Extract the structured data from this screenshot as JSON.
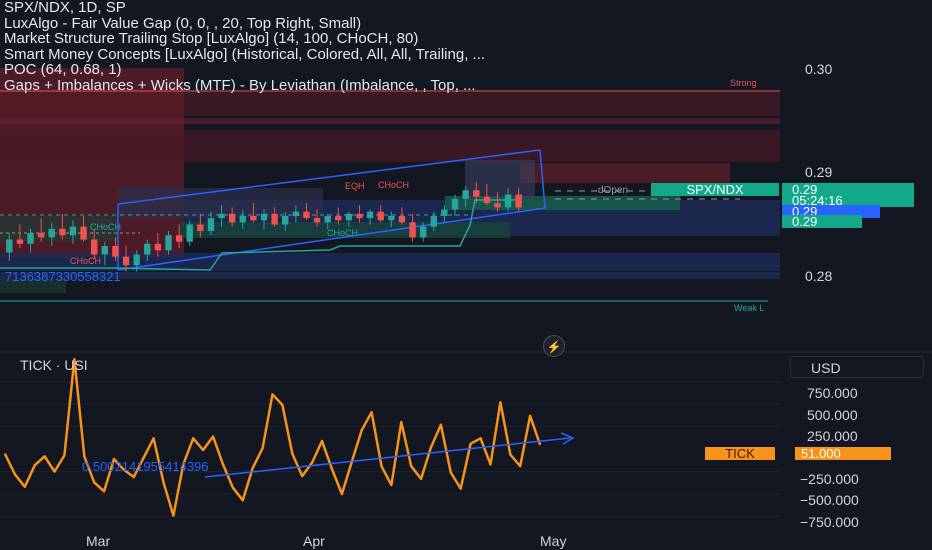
{
  "legend": {
    "title": "SPX/NDX, 1D, SP",
    "lines": [
      "LuxAlgo - Fair Value Gap (0, 0, , 20, Top Right, Small)",
      "Market Structure Trailing Stop [LuxAlgo] (14, 100, CHoCH, 80)",
      "Smart Money Concepts [LuxAlgo] (Historical, Colored, All, All, Trailing, ...",
      "POC (64, 0.68, 1)",
      "Gaps + Imbalances + Wicks (MTF) - By Leviathan (Imbalance, , Top, ..."
    ]
  },
  "annotations": {
    "strong": "Strong",
    "weak": "Weak L",
    "eqh": "EQH",
    "choch_top": "CHoCH",
    "choch_mid": "CHoCH",
    "choch_low": "CHoCH",
    "choch_bottom": "CHoCH",
    "dopen": "dOpen",
    "poc_number": "7136387330558321",
    "slope_number": "0.5002141955414396"
  },
  "price_axis": {
    "ticks": [
      "0.30",
      "0.29",
      "0.28"
    ],
    "badges": [
      {
        "text": "0.29",
        "color": "#13a88a"
      },
      {
        "text": "05:24:16",
        "color": "#13a88a"
      },
      {
        "text": "0.29",
        "color": "#2962ff"
      },
      {
        "text": "0.29",
        "color": "#13a88a"
      }
    ],
    "pair_label": "SPX/NDX"
  },
  "sub_panel": {
    "title": "TICK · USI",
    "currency": "USD",
    "badge_label": "TICK",
    "badge_value": "51.000",
    "ticks": [
      "750.000",
      "500.000",
      "250.000",
      "−250.000",
      "−500.000",
      "−750.000"
    ]
  },
  "time_axis": {
    "ticks": [
      "Mar",
      "Apr",
      "May"
    ]
  },
  "colors": {
    "background": "#131722",
    "bull": "#26a69a",
    "bear": "#ef5350",
    "channel": "#2962ff",
    "tick_line": "#f7931a"
  },
  "chart_data": [
    {
      "type": "candlestick",
      "title": "SPX/NDX, 1D, SP",
      "ylim": [
        0.2745,
        0.3012
      ],
      "yticks": [
        0.3,
        0.29,
        0.28
      ],
      "xticks": [
        "Mar",
        "Apr",
        "May"
      ],
      "candles": [
        {
          "o": 0.2838,
          "h": 0.2856,
          "l": 0.283,
          "c": 0.285
        },
        {
          "o": 0.285,
          "h": 0.2864,
          "l": 0.2842,
          "c": 0.2846
        },
        {
          "o": 0.2846,
          "h": 0.286,
          "l": 0.2838,
          "c": 0.2856
        },
        {
          "o": 0.2856,
          "h": 0.287,
          "l": 0.2848,
          "c": 0.2852
        },
        {
          "o": 0.2852,
          "h": 0.2866,
          "l": 0.2844,
          "c": 0.286
        },
        {
          "o": 0.286,
          "h": 0.2874,
          "l": 0.285,
          "c": 0.2854
        },
        {
          "o": 0.2854,
          "h": 0.2868,
          "l": 0.2846,
          "c": 0.2862
        },
        {
          "o": 0.2862,
          "h": 0.2872,
          "l": 0.2848,
          "c": 0.285
        },
        {
          "o": 0.285,
          "h": 0.286,
          "l": 0.2832,
          "c": 0.2836
        },
        {
          "o": 0.2836,
          "h": 0.2848,
          "l": 0.2826,
          "c": 0.2844
        },
        {
          "o": 0.2844,
          "h": 0.2852,
          "l": 0.283,
          "c": 0.2834
        },
        {
          "o": 0.2834,
          "h": 0.2844,
          "l": 0.282,
          "c": 0.2826
        },
        {
          "o": 0.2826,
          "h": 0.284,
          "l": 0.282,
          "c": 0.2836
        },
        {
          "o": 0.2836,
          "h": 0.285,
          "l": 0.283,
          "c": 0.2846
        },
        {
          "o": 0.2846,
          "h": 0.2856,
          "l": 0.2834,
          "c": 0.284
        },
        {
          "o": 0.284,
          "h": 0.2858,
          "l": 0.2836,
          "c": 0.2854
        },
        {
          "o": 0.2854,
          "h": 0.2864,
          "l": 0.2842,
          "c": 0.2848
        },
        {
          "o": 0.2848,
          "h": 0.2868,
          "l": 0.2844,
          "c": 0.2864
        },
        {
          "o": 0.2864,
          "h": 0.2874,
          "l": 0.2852,
          "c": 0.2858
        },
        {
          "o": 0.2858,
          "h": 0.2876,
          "l": 0.2854,
          "c": 0.287
        },
        {
          "o": 0.287,
          "h": 0.2882,
          "l": 0.2862,
          "c": 0.2874
        },
        {
          "o": 0.2874,
          "h": 0.288,
          "l": 0.2862,
          "c": 0.2866
        },
        {
          "o": 0.2866,
          "h": 0.2878,
          "l": 0.286,
          "c": 0.2872
        },
        {
          "o": 0.2872,
          "h": 0.2884,
          "l": 0.2866,
          "c": 0.2868
        },
        {
          "o": 0.2868,
          "h": 0.2878,
          "l": 0.286,
          "c": 0.2874
        },
        {
          "o": 0.2874,
          "h": 0.288,
          "l": 0.2862,
          "c": 0.2864
        },
        {
          "o": 0.2864,
          "h": 0.2876,
          "l": 0.2858,
          "c": 0.2872
        },
        {
          "o": 0.2872,
          "h": 0.2882,
          "l": 0.2866,
          "c": 0.2876
        },
        {
          "o": 0.2876,
          "h": 0.2884,
          "l": 0.2868,
          "c": 0.287
        },
        {
          "o": 0.287,
          "h": 0.2878,
          "l": 0.2862,
          "c": 0.2866
        },
        {
          "o": 0.2866,
          "h": 0.2874,
          "l": 0.286,
          "c": 0.2872
        },
        {
          "o": 0.2872,
          "h": 0.288,
          "l": 0.2864,
          "c": 0.2868
        },
        {
          "o": 0.2868,
          "h": 0.2876,
          "l": 0.2862,
          "c": 0.2874
        },
        {
          "o": 0.2874,
          "h": 0.2882,
          "l": 0.2866,
          "c": 0.287
        },
        {
          "o": 0.287,
          "h": 0.2878,
          "l": 0.2864,
          "c": 0.2876
        },
        {
          "o": 0.2876,
          "h": 0.2882,
          "l": 0.2866,
          "c": 0.2868
        },
        {
          "o": 0.2868,
          "h": 0.2876,
          "l": 0.2862,
          "c": 0.2872
        },
        {
          "o": 0.2872,
          "h": 0.288,
          "l": 0.2864,
          "c": 0.2866
        },
        {
          "o": 0.2866,
          "h": 0.2874,
          "l": 0.2848,
          "c": 0.2852
        },
        {
          "o": 0.2852,
          "h": 0.2866,
          "l": 0.2848,
          "c": 0.2862
        },
        {
          "o": 0.2862,
          "h": 0.2876,
          "l": 0.2858,
          "c": 0.2872
        },
        {
          "o": 0.2872,
          "h": 0.2882,
          "l": 0.2866,
          "c": 0.2878
        },
        {
          "o": 0.2878,
          "h": 0.2892,
          "l": 0.2872,
          "c": 0.2888
        },
        {
          "o": 0.2888,
          "h": 0.29,
          "l": 0.288,
          "c": 0.2896
        },
        {
          "o": 0.2896,
          "h": 0.2904,
          "l": 0.2884,
          "c": 0.289
        },
        {
          "o": 0.289,
          "h": 0.2902,
          "l": 0.2882,
          "c": 0.2884
        },
        {
          "o": 0.2884,
          "h": 0.2894,
          "l": 0.2876,
          "c": 0.288
        },
        {
          "o": 0.288,
          "h": 0.2898,
          "l": 0.2876,
          "c": 0.2892
        },
        {
          "o": 0.2892,
          "h": 0.2898,
          "l": 0.2876,
          "c": 0.288
        }
      ]
    },
    {
      "type": "line",
      "title": "TICK · USI",
      "ylim": [
        -900,
        1080
      ],
      "yticks": [
        750,
        500,
        250,
        -250,
        -500,
        -750
      ],
      "last_value": 51,
      "series": [
        {
          "name": "TICK",
          "values": [
            -55,
            -280,
            -420,
            -180,
            -80,
            -250,
            -70,
            1000,
            -80,
            -370,
            -470,
            -110,
            -230,
            -310,
            -95,
            120,
            -370,
            -740,
            -170,
            120,
            -10,
            140,
            -170,
            -430,
            -570,
            -210,
            10,
            610,
            490,
            -50,
            -300,
            -150,
            90,
            -220,
            -500,
            -140,
            210,
            410,
            -190,
            -400,
            300,
            -190,
            -330,
            20,
            270,
            -260,
            -440,
            60,
            120,
            -170,
            520,
            -60,
            -190,
            370,
            51
          ]
        },
        {
          "name": "",
          "values": [
            -240,
            -220,
            -200,
            -180,
            -160,
            -140,
            -120,
            -100,
            -80,
            -60,
            -40,
            -20,
            0,
            20,
            40,
            60,
            80,
            100,
            120,
            140,
            160
          ]
        }
      ]
    }
  ]
}
